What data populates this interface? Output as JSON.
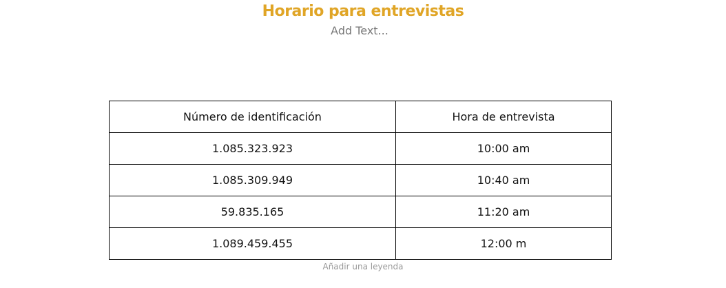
{
  "header": {
    "title": "Horario para entrevistas",
    "subtitle": "Add Text..."
  },
  "table": {
    "columns": [
      "Número de identificación",
      "Hora de entrevista"
    ],
    "rows": [
      [
        "1.085.323.923",
        "10:00 am"
      ],
      [
        "1.085.309.949",
        "10:40 am"
      ],
      [
        "59.835.165",
        "11:20 am"
      ],
      [
        "1.089.459.455",
        "12:00 m"
      ]
    ],
    "caption": "Añadir una leyenda"
  },
  "colors": {
    "title": "#e0a526"
  }
}
